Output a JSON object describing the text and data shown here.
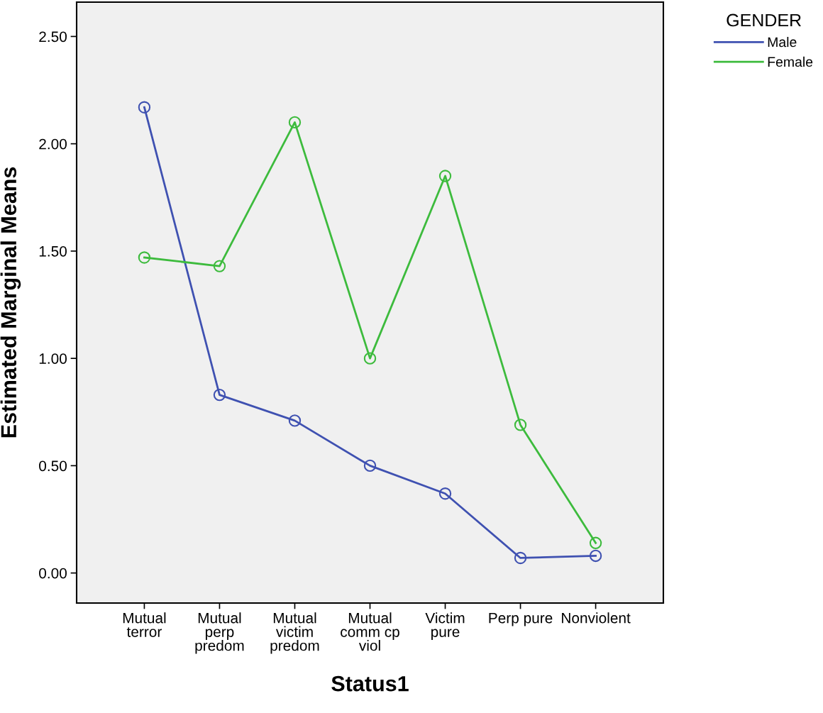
{
  "chart_data": {
    "type": "line",
    "xlabel": "Status1",
    "ylabel": "Estimated Marginal Means",
    "legend_title": "GENDER",
    "categories": [
      "Mutual\nterror",
      "Mutual\nperp\npredom",
      "Mutual\nvictim\npredom",
      "Mutual\ncomm cp\nviol",
      "Victim\npure",
      "Perp pure",
      "Nonviolent"
    ],
    "series": [
      {
        "name": "Male",
        "color": "#3f51b1",
        "values": [
          2.17,
          0.83,
          0.71,
          0.5,
          0.37,
          0.07,
          0.08
        ]
      },
      {
        "name": "Female",
        "color": "#3dbb3d",
        "values": [
          1.47,
          1.43,
          2.1,
          1.0,
          1.85,
          0.69,
          0.14
        ]
      }
    ],
    "ylim": [
      -0.14,
      2.66
    ],
    "yticks": [
      {
        "value": 0,
        "label": "0.00"
      },
      {
        "value": 0.5,
        "label": "0.50"
      },
      {
        "value": 1,
        "label": "1.00"
      },
      {
        "value": 1.5,
        "label": "1.50"
      },
      {
        "value": 2,
        "label": "2.00"
      },
      {
        "value": 2.5,
        "label": "2.50"
      }
    ],
    "marker": "circle",
    "line_style": "solid",
    "grid": false,
    "legend": "top right"
  }
}
